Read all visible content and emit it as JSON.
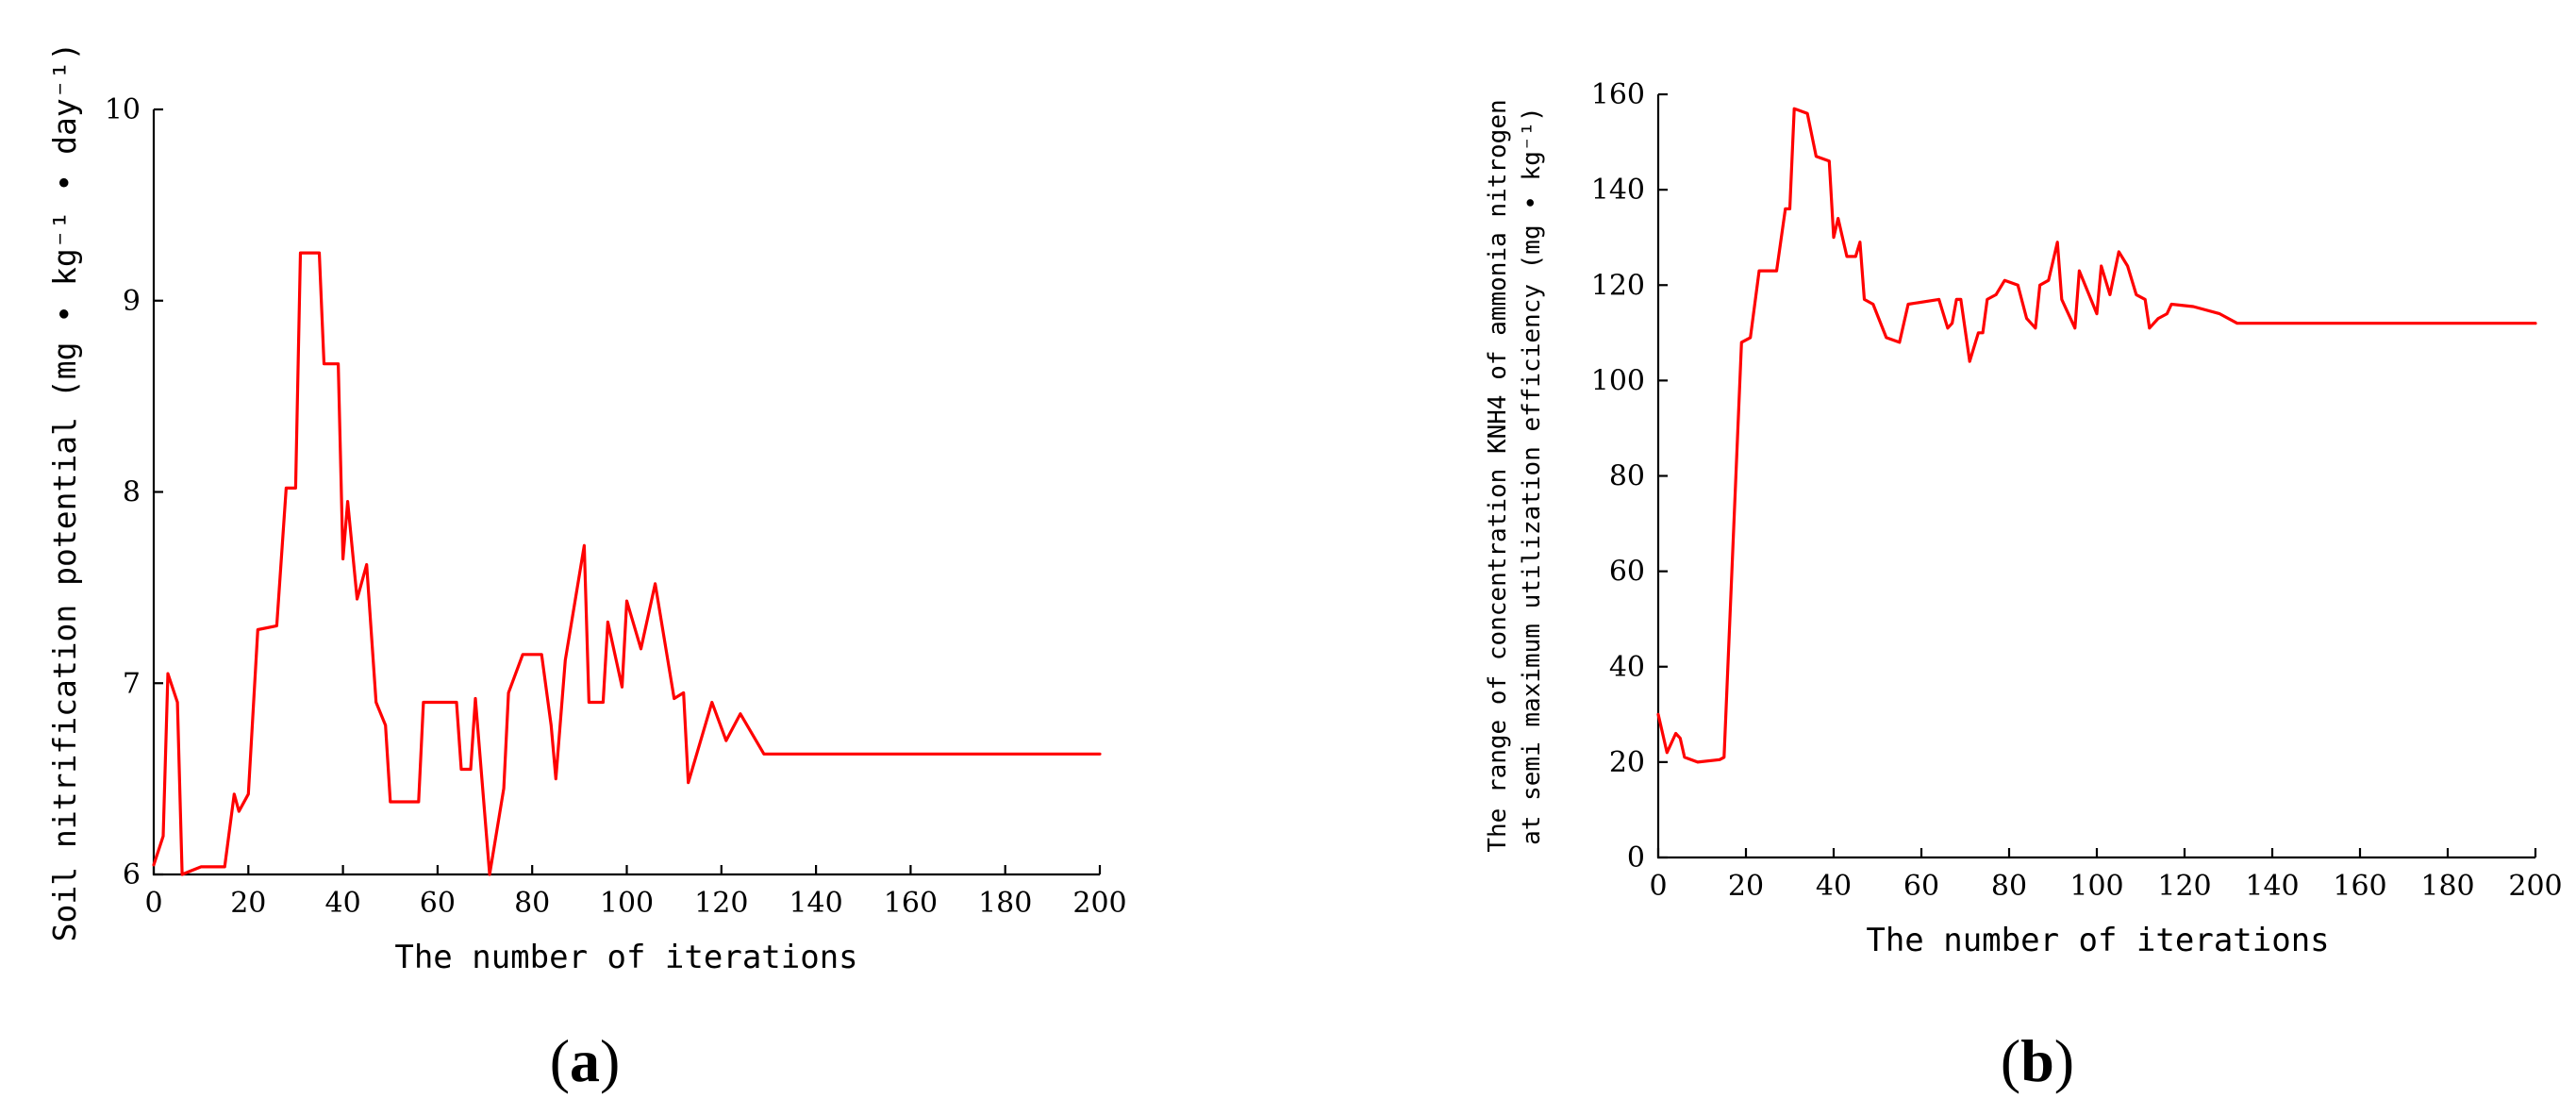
{
  "chart_data": [
    {
      "type": "line",
      "panel_label": "a",
      "xlabel": "The number of iterations",
      "ylabel_lines": [
        "Soil nitrification potential (mg • kg⁻¹ • day⁻¹)"
      ],
      "xlim": [
        0,
        200
      ],
      "ylim": [
        6,
        10
      ],
      "xticks": [
        0,
        20,
        40,
        60,
        80,
        100,
        120,
        140,
        160,
        180,
        200
      ],
      "yticks": [
        6,
        7,
        8,
        9,
        10
      ],
      "grid": false,
      "series": [
        {
          "color": "#ff0000",
          "points": [
            [
              0,
              6.05
            ],
            [
              2,
              6.2
            ],
            [
              3,
              7.05
            ],
            [
              5,
              6.9
            ],
            [
              6,
              6.0
            ],
            [
              8,
              6.02
            ],
            [
              10,
              6.04
            ],
            [
              15,
              6.04
            ],
            [
              17,
              6.42
            ],
            [
              18,
              6.33
            ],
            [
              20,
              6.42
            ],
            [
              22,
              7.28
            ],
            [
              26,
              7.3
            ],
            [
              28,
              8.02
            ],
            [
              30,
              8.02
            ],
            [
              31,
              9.25
            ],
            [
              35,
              9.25
            ],
            [
              36,
              8.67
            ],
            [
              39,
              8.67
            ],
            [
              40,
              7.65
            ],
            [
              41,
              7.95
            ],
            [
              43,
              7.44
            ],
            [
              45,
              7.62
            ],
            [
              47,
              6.9
            ],
            [
              49,
              6.78
            ],
            [
              50,
              6.38
            ],
            [
              56,
              6.38
            ],
            [
              57,
              6.9
            ],
            [
              64,
              6.9
            ],
            [
              65,
              6.55
            ],
            [
              67,
              6.55
            ],
            [
              68,
              6.92
            ],
            [
              71,
              6.0
            ],
            [
              74,
              6.45
            ],
            [
              75,
              6.95
            ],
            [
              78,
              7.15
            ],
            [
              82,
              7.15
            ],
            [
              84,
              6.78
            ],
            [
              85,
              6.5
            ],
            [
              87,
              7.12
            ],
            [
              91,
              7.72
            ],
            [
              92,
              6.9
            ],
            [
              95,
              6.9
            ],
            [
              96,
              7.32
            ],
            [
              99,
              6.98
            ],
            [
              100,
              7.43
            ],
            [
              103,
              7.18
            ],
            [
              106,
              7.52
            ],
            [
              110,
              6.92
            ],
            [
              112,
              6.95
            ],
            [
              113,
              6.48
            ],
            [
              118,
              6.9
            ],
            [
              121,
              6.7
            ],
            [
              124,
              6.84
            ],
            [
              129,
              6.63
            ],
            [
              200,
              6.63
            ]
          ]
        }
      ]
    },
    {
      "type": "line",
      "panel_label": "b",
      "xlabel": "The number of iterations",
      "ylabel_lines": [
        "The range of concentration KNH4 of ammonia nitrogen",
        "at semi maximum utilization efficiency (mg • kg⁻¹)"
      ],
      "xlim": [
        0,
        200
      ],
      "ylim": [
        0,
        160
      ],
      "xticks": [
        0,
        20,
        40,
        60,
        80,
        100,
        120,
        140,
        160,
        180,
        200
      ],
      "yticks": [
        0,
        20,
        40,
        60,
        80,
        100,
        120,
        140,
        160
      ],
      "grid": false,
      "series": [
        {
          "color": "#ff0000",
          "points": [
            [
              0,
              30
            ],
            [
              2,
              22
            ],
            [
              4,
              26
            ],
            [
              5,
              25
            ],
            [
              6,
              21
            ],
            [
              9,
              20
            ],
            [
              14,
              20.5
            ],
            [
              15,
              21
            ],
            [
              19,
              108
            ],
            [
              21,
              109
            ],
            [
              23,
              123
            ],
            [
              27,
              123
            ],
            [
              29,
              136
            ],
            [
              30,
              136
            ],
            [
              31,
              157
            ],
            [
              34,
              156
            ],
            [
              36,
              147
            ],
            [
              39,
              146
            ],
            [
              40,
              130
            ],
            [
              41,
              134
            ],
            [
              43,
              126
            ],
            [
              45,
              126
            ],
            [
              46,
              129
            ],
            [
              47,
              117
            ],
            [
              49,
              116
            ],
            [
              52,
              109
            ],
            [
              55,
              108
            ],
            [
              57,
              116
            ],
            [
              64,
              117
            ],
            [
              66,
              111
            ],
            [
              67,
              112
            ],
            [
              68,
              117
            ],
            [
              69,
              117
            ],
            [
              71,
              104
            ],
            [
              73,
              110
            ],
            [
              74,
              110
            ],
            [
              75,
              117
            ],
            [
              77,
              118
            ],
            [
              79,
              121
            ],
            [
              82,
              120
            ],
            [
              84,
              113
            ],
            [
              86,
              111
            ],
            [
              87,
              120
            ],
            [
              89,
              121
            ],
            [
              91,
              129
            ],
            [
              92,
              117
            ],
            [
              95,
              111
            ],
            [
              96,
              123
            ],
            [
              100,
              114
            ],
            [
              101,
              124
            ],
            [
              103,
              118
            ],
            [
              105,
              127
            ],
            [
              107,
              124
            ],
            [
              109,
              118
            ],
            [
              111,
              117
            ],
            [
              112,
              111
            ],
            [
              114,
              113
            ],
            [
              116,
              114
            ],
            [
              117,
              116
            ],
            [
              122,
              115.5
            ],
            [
              128,
              114
            ],
            [
              132,
              112
            ],
            [
              200,
              112
            ]
          ]
        }
      ]
    }
  ]
}
